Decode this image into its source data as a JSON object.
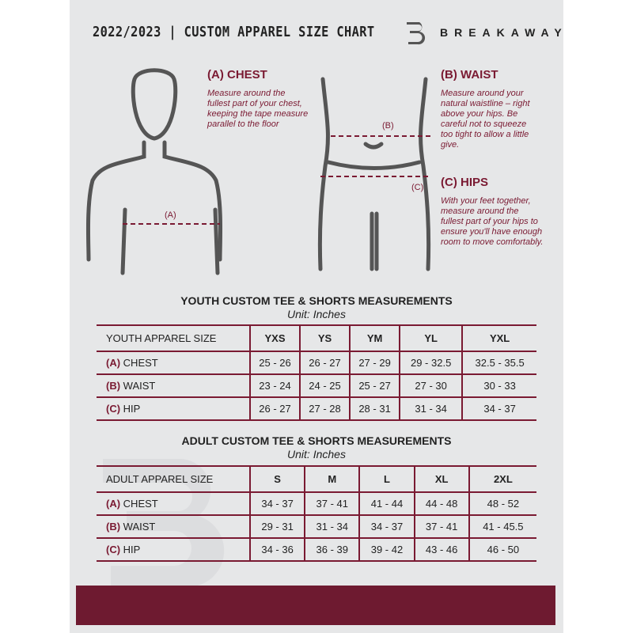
{
  "header": {
    "title": "2022/2023 | CUSTOM APPAREL SIZE CHART",
    "brand": "BREAKAWAY"
  },
  "measures": {
    "chest": {
      "heading": "(A) CHEST",
      "text": "Measure around the fullest part of your chest, keeping the tape measure parallel to the floor",
      "marker": "(A)"
    },
    "waist": {
      "heading": "(B) WAIST",
      "text": "Measure around your natural waistline – right above your hips. Be careful not to squeeze too tight to allow a little give.",
      "marker": "(B)"
    },
    "hips": {
      "heading": "(C) HIPS",
      "text": "With your feet together, measure around the fullest part of your hips to ensure you'll have enough room to move comfortably.",
      "marker": "(C)"
    }
  },
  "youth": {
    "title": "YOUTH CUSTOM TEE & SHORTS MEASUREMENTS",
    "unit": "Unit: Inches",
    "header": "YOUTH APPAREL SIZE",
    "sizes": [
      "YXS",
      "YS",
      "YM",
      "YL",
      "YXL"
    ],
    "rows": [
      {
        "letter": "(A)",
        "label": "CHEST",
        "values": [
          "25 - 26",
          "26 - 27",
          "27 - 29",
          "29 - 32.5",
          "32.5 - 35.5"
        ]
      },
      {
        "letter": "(B)",
        "label": "WAIST",
        "values": [
          "23 - 24",
          "24 - 25",
          "25 - 27",
          "27 - 30",
          "30 - 33"
        ]
      },
      {
        "letter": "(C)",
        "label": "HIP",
        "values": [
          "26 - 27",
          "27 - 28",
          "28 - 31",
          "31 - 34",
          "34 - 37"
        ]
      }
    ]
  },
  "adult": {
    "title": "ADULT CUSTOM TEE & SHORTS MEASUREMENTS",
    "unit": "Unit: Inches",
    "header": "ADULT APPAREL SIZE",
    "sizes": [
      "S",
      "M",
      "L",
      "XL",
      "2XL"
    ],
    "rows": [
      {
        "letter": "(A)",
        "label": "CHEST",
        "values": [
          "34 - 37",
          "37 - 41",
          "41 - 44",
          "44 - 48",
          "48 - 52"
        ]
      },
      {
        "letter": "(B)",
        "label": "WAIST",
        "values": [
          "29 - 31",
          "31 - 34",
          "34 - 37",
          "37 - 41",
          "41 - 45.5"
        ]
      },
      {
        "letter": "(C)",
        "label": "HIP",
        "values": [
          "34 - 36",
          "36 - 39",
          "39 - 42",
          "43 - 46",
          "46 - 50"
        ]
      }
    ]
  },
  "colors": {
    "accent": "#7a1a32",
    "background": "#e6e7e8",
    "band": "#6e1a30"
  }
}
